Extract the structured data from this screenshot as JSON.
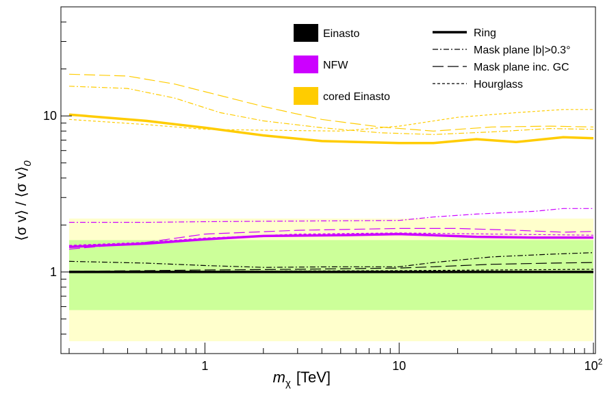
{
  "chart_data": {
    "type": "line",
    "title": "",
    "xlabel_main": "m",
    "xlabel_sub": "χ",
    "xlabel_unit": "[TeV]",
    "ylabel_text": "⟨σ v⟩ / ⟨σ v⟩",
    "ylabel_sub": "0",
    "x_scale": "log",
    "y_scale": "log",
    "xlim": [
      0.2,
      100
    ],
    "ylim": [
      0.3,
      50
    ],
    "x_ticks": [
      {
        "value": 1,
        "label": "1"
      },
      {
        "value": 10,
        "label": "10"
      },
      {
        "value": 100,
        "label": "10",
        "sup": "2"
      }
    ],
    "y_ticks": [
      {
        "value": 1,
        "label": "1"
      },
      {
        "value": 10,
        "label": "10"
      }
    ],
    "bands": [
      {
        "name": "outer",
        "y_low": 0.36,
        "y_high": 2.2,
        "color": "#ffffcc"
      },
      {
        "name": "inner",
        "y_low": 0.57,
        "y_high": 1.6,
        "color": "#ccff99"
      }
    ],
    "profile_legend": [
      {
        "label": "Einasto",
        "color": "#000000"
      },
      {
        "label": "NFW",
        "color": "#cc00ff"
      },
      {
        "label": "cored Einasto",
        "color": "#ffcc00"
      }
    ],
    "region_legend": [
      {
        "label": "Ring",
        "style": "solid"
      },
      {
        "label": "Mask plane |b|>0.3°",
        "style": "dashdot"
      },
      {
        "label": "Mask plane inc. GC",
        "style": "longdash"
      },
      {
        "label": "Hourglass",
        "style": "dotted"
      }
    ],
    "series": [
      {
        "profile": "Einasto",
        "region": "Ring",
        "color": "#000000",
        "style": "solid",
        "x": [
          0.2,
          1,
          10,
          100
        ],
        "y": [
          1.0,
          1.0,
          1.0,
          1.0
        ]
      },
      {
        "profile": "Einasto",
        "region": "Mask plane |b|>0.3°",
        "color": "#000000",
        "style": "dashdot",
        "x": [
          0.2,
          0.5,
          1,
          2,
          5,
          10,
          15,
          30,
          60,
          100
        ],
        "y": [
          1.17,
          1.14,
          1.1,
          1.07,
          1.08,
          1.08,
          1.15,
          1.25,
          1.3,
          1.33
        ]
      },
      {
        "profile": "Einasto",
        "region": "Mask plane inc. GC",
        "color": "#000000",
        "style": "longdash",
        "x": [
          0.2,
          0.5,
          1,
          3,
          10,
          15,
          30,
          60,
          100
        ],
        "y": [
          1.01,
          1.02,
          1.03,
          1.04,
          1.06,
          1.08,
          1.12,
          1.14,
          1.15
        ]
      },
      {
        "profile": "Einasto",
        "region": "Hourglass",
        "color": "#000000",
        "style": "dotted",
        "x": [
          0.2,
          1,
          10,
          30,
          100
        ],
        "y": [
          1.0,
          1.01,
          1.02,
          1.03,
          1.04
        ]
      },
      {
        "profile": "NFW",
        "region": "Ring",
        "color": "#cc00ff",
        "style": "solid",
        "x": [
          0.2,
          0.5,
          1,
          2,
          5,
          10,
          15,
          25,
          50,
          100
        ],
        "y": [
          1.45,
          1.52,
          1.62,
          1.7,
          1.72,
          1.75,
          1.72,
          1.68,
          1.66,
          1.66
        ]
      },
      {
        "profile": "NFW",
        "region": "Mask plane |b|>0.3°",
        "color": "#cc00ff",
        "style": "dashdot",
        "x": [
          0.2,
          0.5,
          1,
          3,
          10,
          15,
          25,
          50,
          70,
          100
        ],
        "y": [
          2.08,
          2.08,
          2.1,
          2.12,
          2.14,
          2.25,
          2.35,
          2.45,
          2.55,
          2.55
        ]
      },
      {
        "profile": "NFW",
        "region": "Mask plane inc. GC",
        "color": "#cc00ff",
        "style": "longdash",
        "x": [
          0.2,
          0.5,
          1,
          3,
          10,
          20,
          40,
          70,
          100
        ],
        "y": [
          1.4,
          1.55,
          1.75,
          1.85,
          1.9,
          1.9,
          1.85,
          1.8,
          1.82
        ]
      },
      {
        "profile": "NFW",
        "region": "Hourglass",
        "color": "#cc00ff",
        "style": "dotted",
        "x": [
          0.2,
          0.5,
          1,
          3,
          10,
          30,
          100
        ],
        "y": [
          1.48,
          1.55,
          1.65,
          1.75,
          1.78,
          1.75,
          1.72
        ]
      },
      {
        "profile": "cored Einasto",
        "region": "Ring",
        "color": "#ffcc00",
        "style": "solid",
        "x": [
          0.2,
          0.5,
          1,
          2,
          4,
          10,
          15,
          25,
          40,
          70,
          100
        ],
        "y": [
          10.2,
          9.3,
          8.4,
          7.5,
          6.9,
          6.7,
          6.7,
          7.1,
          6.8,
          7.3,
          7.2
        ]
      },
      {
        "profile": "cored Einasto",
        "region": "Mask plane |b|>0.3°",
        "color": "#ffcc00",
        "style": "dashdot",
        "x": [
          0.2,
          0.4,
          0.7,
          1.2,
          2,
          4,
          8,
          15,
          30,
          60,
          100
        ],
        "y": [
          15.5,
          15.0,
          13.0,
          10.5,
          9.3,
          8.4,
          7.8,
          7.6,
          7.9,
          8.3,
          8.2
        ]
      },
      {
        "profile": "cored Einasto",
        "region": "Mask plane inc. GC",
        "color": "#ffcc00",
        "style": "longdash",
        "x": [
          0.2,
          0.4,
          0.7,
          1.2,
          2,
          4,
          8,
          15,
          30,
          60,
          100
        ],
        "y": [
          18.5,
          18.0,
          16.0,
          13.5,
          11.5,
          9.5,
          8.5,
          8.0,
          8.5,
          8.6,
          8.5
        ]
      },
      {
        "profile": "cored Einasto",
        "region": "Hourglass",
        "color": "#ffcc00",
        "style": "dotted",
        "x": [
          0.2,
          0.5,
          1,
          2,
          5,
          10,
          20,
          40,
          70,
          100
        ],
        "y": [
          9.5,
          8.8,
          8.2,
          8.1,
          8.0,
          8.6,
          9.8,
          10.5,
          11.0,
          11.0
        ]
      }
    ]
  }
}
